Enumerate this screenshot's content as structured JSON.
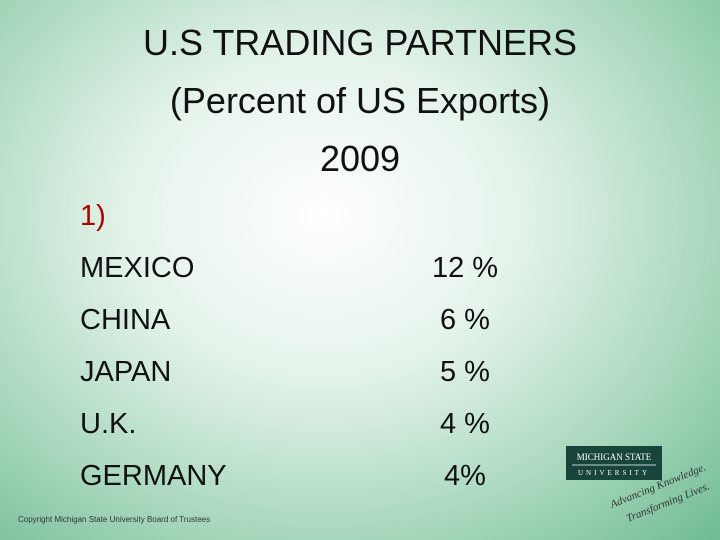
{
  "header": {
    "title_lines": [
      "U.S TRADING PARTNERS",
      "(Percent of US Exports)",
      "2009"
    ]
  },
  "list": {
    "marker": "1)",
    "rows": [
      [
        "MEXICO",
        "12 %"
      ],
      [
        "CHINA",
        "6 %"
      ],
      [
        "JAPAN",
        "5 %"
      ],
      [
        "U.K.",
        "4 %"
      ],
      [
        "GERMANY",
        "4%"
      ]
    ]
  },
  "logo": {
    "name": "MICHIGAN STATE",
    "sub": "UNIVERSITY",
    "tagline_1": "Advancing Knowledge.",
    "tagline_2": "Transforming Lives."
  },
  "footer": {
    "copyright": "Copyright Michigan State University Board of Trustees"
  }
}
